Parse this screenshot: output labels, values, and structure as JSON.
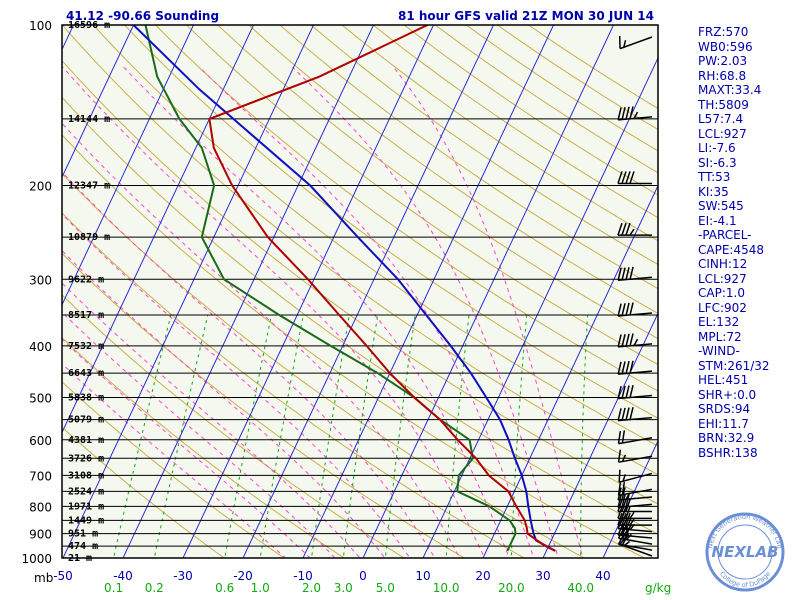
{
  "header": {
    "location": "41.12 -90.66 Sounding",
    "run": "81 hour GFS valid 21Z MON 30 JUN 14"
  },
  "colors": {
    "plot_background": "#f4f8ee",
    "frame": "#000000",
    "text_blue": "#0000aa",
    "isobar": "#000000",
    "isotherm": "#2b2bd6",
    "dry_adiabat": "#c9b04a",
    "moist_adiabat": "#ff44cc",
    "mixing_ratio": "#11aa11",
    "temperature": "#b00000",
    "dewpoint": "#1a6a1a",
    "parcel": "#1010c0",
    "wind_barb": "#000000",
    "logo": "#6b8fd6"
  },
  "indices": [
    "FRZ:570",
    "WB0:596",
    "PW:2.03",
    "RH:68.8",
    "MAXT:33.4",
    "TH:5809",
    "L57:7.4",
    "LCL:927",
    "LI:-7.6",
    "SI:-6.3",
    "TT:53",
    "KI:35",
    "SW:545",
    "EI:-4.1",
    "-PARCEL-",
    "CAPE:4548",
    "CINH:12",
    "LCL:927",
    "CAP:1.0",
    "LFC:902",
    "EL:132",
    "MPL:72",
    "-WIND-",
    "STM:261/32",
    "HEL:451",
    "SHR+:0.0",
    "SRDS:94",
    "EHI:11.7",
    "BRN:32.9",
    "BSHR:138"
  ],
  "logo": {
    "main": "NEXLAB",
    "top_arc": "Next Generation Weather Lab",
    "bottom_arc": "College of DuPage"
  },
  "chart_data": {
    "type": "skew-t",
    "y_unit": "mb",
    "x_unit": "°C",
    "pressure_range": [
      1000,
      100
    ],
    "y_tick_labels": [
      "100",
      "200",
      "300",
      "400",
      "500",
      "600",
      "700",
      "800",
      "900",
      "1000"
    ],
    "x_tick_labels": [
      "-50",
      "-40",
      "-30",
      "-20",
      "-10",
      "0",
      "10",
      "20",
      "30",
      "40"
    ],
    "y_axis_unit_label": "mb",
    "mixing_ratio_labels": [
      "0.1",
      "0.2",
      "0.6",
      "1.0",
      "2.0",
      "3.0",
      "5.0",
      "10.0",
      "20.0",
      "40.0"
    ],
    "mixing_ratio_unit": "g/kg",
    "height_labels": [
      {
        "p": 100,
        "label": "16596 m"
      },
      {
        "p": 150,
        "label": "14144 m"
      },
      {
        "p": 200,
        "label": "12347 m"
      },
      {
        "p": 250,
        "label": "10879 m"
      },
      {
        "p": 300,
        "label": "9622 m"
      },
      {
        "p": 350,
        "label": "8517 m"
      },
      {
        "p": 400,
        "label": "7532 m"
      },
      {
        "p": 450,
        "label": "6643 m"
      },
      {
        "p": 500,
        "label": "5838 m"
      },
      {
        "p": 550,
        "label": "5079 m"
      },
      {
        "p": 600,
        "label": "4381 m"
      },
      {
        "p": 650,
        "label": "3726 m"
      },
      {
        "p": 700,
        "label": "3108 m"
      },
      {
        "p": 750,
        "label": "2524 m"
      },
      {
        "p": 800,
        "label": "1971 m"
      },
      {
        "p": 850,
        "label": "1449 m"
      },
      {
        "p": 900,
        "label": "951 m"
      },
      {
        "p": 950,
        "label": "474 m"
      },
      {
        "p": 1000,
        "label": "21 m"
      }
    ],
    "temperature": [
      [
        970,
        31.5
      ],
      [
        950,
        29.5
      ],
      [
        925,
        27.5
      ],
      [
        900,
        25.5
      ],
      [
        880,
        25
      ],
      [
        850,
        24
      ],
      [
        800,
        21.5
      ],
      [
        750,
        19
      ],
      [
        700,
        14.5
      ],
      [
        650,
        11
      ],
      [
        600,
        6.5
      ],
      [
        550,
        2
      ],
      [
        500,
        -4
      ],
      [
        450,
        -10
      ],
      [
        400,
        -16
      ],
      [
        350,
        -23
      ],
      [
        300,
        -31
      ],
      [
        250,
        -41
      ],
      [
        200,
        -51
      ],
      [
        170,
        -57
      ],
      [
        150,
        -60
      ],
      [
        125,
        -45
      ],
      [
        100,
        -31
      ]
    ],
    "dewpoint": [
      [
        970,
        23.5
      ],
      [
        950,
        23.5
      ],
      [
        925,
        23.5
      ],
      [
        900,
        23.5
      ],
      [
        880,
        23
      ],
      [
        850,
        21.5
      ],
      [
        800,
        17
      ],
      [
        750,
        10.5
      ],
      [
        700,
        9.5
      ],
      [
        650,
        10.5
      ],
      [
        600,
        8.5
      ],
      [
        550,
        2
      ],
      [
        500,
        -4
      ],
      [
        450,
        -12
      ],
      [
        400,
        -22
      ],
      [
        350,
        -33
      ],
      [
        300,
        -45
      ],
      [
        250,
        -52
      ],
      [
        200,
        -54
      ],
      [
        170,
        -59
      ],
      [
        150,
        -65
      ],
      [
        125,
        -72
      ],
      [
        100,
        -78
      ]
    ],
    "parcel": [
      [
        970,
        31.5
      ],
      [
        927,
        27.5
      ],
      [
        900,
        26.5
      ],
      [
        850,
        25
      ],
      [
        800,
        23.5
      ],
      [
        750,
        22
      ],
      [
        700,
        20
      ],
      [
        650,
        17.5
      ],
      [
        600,
        15
      ],
      [
        550,
        12
      ],
      [
        500,
        8
      ],
      [
        450,
        3.5
      ],
      [
        400,
        -2
      ],
      [
        350,
        -8.5
      ],
      [
        300,
        -16
      ],
      [
        250,
        -26
      ],
      [
        200,
        -38
      ],
      [
        150,
        -56
      ],
      [
        132,
        -64
      ],
      [
        100,
        -80
      ]
    ],
    "wind_barbs": [
      {
        "p": 1000,
        "dir": 250,
        "spd": 15
      },
      {
        "p": 975,
        "dir": 260,
        "spd": 20
      },
      {
        "p": 950,
        "dir": 260,
        "spd": 25
      },
      {
        "p": 925,
        "dir": 265,
        "spd": 30
      },
      {
        "p": 900,
        "dir": 265,
        "spd": 35
      },
      {
        "p": 875,
        "dir": 270,
        "spd": 35
      },
      {
        "p": 850,
        "dir": 270,
        "spd": 35
      },
      {
        "p": 825,
        "dir": 270,
        "spd": 30
      },
      {
        "p": 800,
        "dir": 275,
        "spd": 30
      },
      {
        "p": 775,
        "dir": 275,
        "spd": 25
      },
      {
        "p": 750,
        "dir": 280,
        "spd": 20
      },
      {
        "p": 700,
        "dir": 285,
        "spd": 15
      },
      {
        "p": 650,
        "dir": 280,
        "spd": 15
      },
      {
        "p": 600,
        "dir": 280,
        "spd": 20
      },
      {
        "p": 550,
        "dir": 275,
        "spd": 40
      },
      {
        "p": 500,
        "dir": 275,
        "spd": 40
      },
      {
        "p": 450,
        "dir": 275,
        "spd": 40
      },
      {
        "p": 400,
        "dir": 275,
        "spd": 45
      },
      {
        "p": 350,
        "dir": 275,
        "spd": 40
      },
      {
        "p": 300,
        "dir": 275,
        "spd": 40
      },
      {
        "p": 250,
        "dir": 270,
        "spd": 35
      },
      {
        "p": 200,
        "dir": 270,
        "spd": 40
      },
      {
        "p": 150,
        "dir": 275,
        "spd": 45
      },
      {
        "p": 100,
        "dir": 290,
        "spd": 15
      }
    ]
  }
}
